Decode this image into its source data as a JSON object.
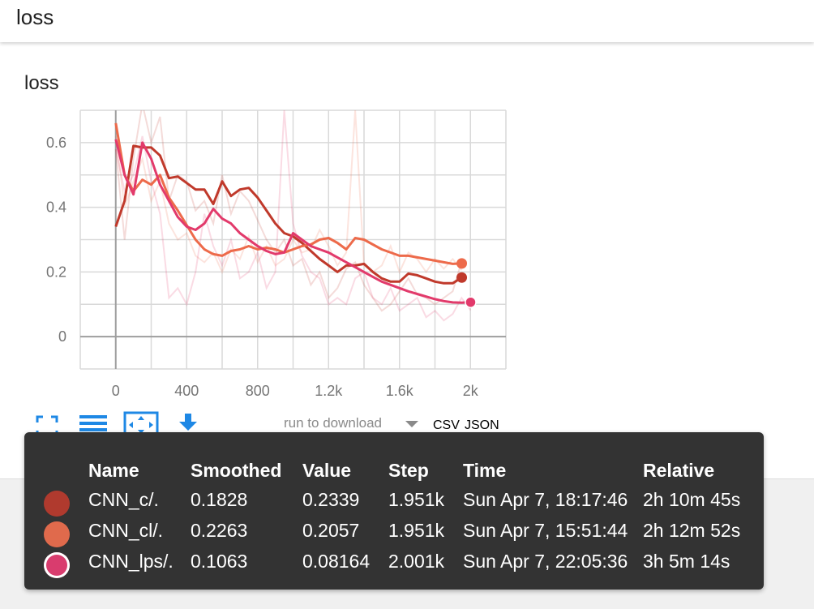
{
  "header": {
    "title": "loss"
  },
  "chart_data": {
    "type": "line",
    "title": "loss",
    "xlabel": "",
    "ylabel": "",
    "xlim": [
      -200,
      2200
    ],
    "ylim": [
      -0.1,
      0.7
    ],
    "x_ticks": [
      0,
      400,
      800,
      1200,
      1600,
      2000
    ],
    "x_tick_labels": [
      "0",
      "400",
      "800",
      "1.2k",
      "1.6k",
      "2k"
    ],
    "y_ticks": [
      0,
      0.2,
      0.4,
      0.6
    ],
    "y_tick_labels": [
      "0",
      "0.2",
      "0.4",
      "0.6"
    ],
    "grid": true,
    "series": [
      {
        "name": "CNN_c/.",
        "color": "#c0392b",
        "smoothed": [
          [
            0,
            0.34
          ],
          [
            50,
            0.42
          ],
          [
            100,
            0.59
          ],
          [
            150,
            0.585
          ],
          [
            200,
            0.585
          ],
          [
            250,
            0.56
          ],
          [
            300,
            0.49
          ],
          [
            350,
            0.495
          ],
          [
            400,
            0.475
          ],
          [
            450,
            0.455
          ],
          [
            500,
            0.455
          ],
          [
            550,
            0.41
          ],
          [
            600,
            0.48
          ],
          [
            650,
            0.435
          ],
          [
            700,
            0.455
          ],
          [
            750,
            0.46
          ],
          [
            800,
            0.43
          ],
          [
            850,
            0.39
          ],
          [
            900,
            0.35
          ],
          [
            950,
            0.32
          ],
          [
            1000,
            0.31
          ],
          [
            1050,
            0.29
          ],
          [
            1100,
            0.265
          ],
          [
            1150,
            0.24
          ],
          [
            1200,
            0.22
          ],
          [
            1250,
            0.2
          ],
          [
            1300,
            0.22
          ],
          [
            1350,
            0.22
          ],
          [
            1400,
            0.225
          ],
          [
            1450,
            0.2
          ],
          [
            1500,
            0.18
          ],
          [
            1550,
            0.17
          ],
          [
            1600,
            0.17
          ],
          [
            1650,
            0.195
          ],
          [
            1700,
            0.19
          ],
          [
            1750,
            0.18
          ],
          [
            1800,
            0.17
          ],
          [
            1850,
            0.165
          ],
          [
            1900,
            0.165
          ],
          [
            1951,
            0.1828
          ]
        ],
        "raw": [
          [
            0,
            0.58
          ],
          [
            50,
            0.3
          ],
          [
            100,
            0.55
          ],
          [
            150,
            0.72
          ],
          [
            200,
            0.6
          ],
          [
            250,
            0.68
          ],
          [
            300,
            0.42
          ],
          [
            350,
            0.5
          ],
          [
            400,
            0.48
          ],
          [
            450,
            0.39
          ],
          [
            500,
            0.42
          ],
          [
            550,
            0.35
          ],
          [
            600,
            0.5
          ],
          [
            650,
            0.38
          ],
          [
            700,
            0.45
          ],
          [
            750,
            0.42
          ],
          [
            800,
            0.36
          ],
          [
            850,
            0.3
          ],
          [
            900,
            0.26
          ],
          [
            950,
            0.3
          ],
          [
            1000,
            0.22
          ],
          [
            1050,
            0.24
          ],
          [
            1100,
            0.16
          ],
          [
            1150,
            0.2
          ],
          [
            1200,
            0.12
          ],
          [
            1250,
            0.15
          ],
          [
            1300,
            0.21
          ],
          [
            1350,
            0.23
          ],
          [
            1400,
            0.16
          ],
          [
            1450,
            0.12
          ],
          [
            1500,
            0.08
          ],
          [
            1550,
            0.1
          ],
          [
            1600,
            0.14
          ],
          [
            1650,
            0.18
          ],
          [
            1700,
            0.13
          ],
          [
            1750,
            0.12
          ],
          [
            1800,
            0.1
          ],
          [
            1850,
            0.12
          ],
          [
            1900,
            0.14
          ],
          [
            1951,
            0.2339
          ]
        ]
      },
      {
        "name": "CNN_cl/.",
        "color": "#ed6a4a",
        "smoothed": [
          [
            0,
            0.66
          ],
          [
            50,
            0.5
          ],
          [
            100,
            0.45
          ],
          [
            150,
            0.485
          ],
          [
            200,
            0.47
          ],
          [
            250,
            0.5
          ],
          [
            300,
            0.43
          ],
          [
            350,
            0.39
          ],
          [
            400,
            0.345
          ],
          [
            450,
            0.3
          ],
          [
            500,
            0.27
          ],
          [
            550,
            0.255
          ],
          [
            600,
            0.25
          ],
          [
            650,
            0.265
          ],
          [
            700,
            0.27
          ],
          [
            750,
            0.28
          ],
          [
            800,
            0.27
          ],
          [
            850,
            0.275
          ],
          [
            900,
            0.27
          ],
          [
            950,
            0.26
          ],
          [
            1000,
            0.27
          ],
          [
            1050,
            0.28
          ],
          [
            1100,
            0.285
          ],
          [
            1150,
            0.3
          ],
          [
            1200,
            0.305
          ],
          [
            1250,
            0.29
          ],
          [
            1300,
            0.27
          ],
          [
            1350,
            0.305
          ],
          [
            1400,
            0.3
          ],
          [
            1450,
            0.285
          ],
          [
            1500,
            0.27
          ],
          [
            1550,
            0.26
          ],
          [
            1600,
            0.25
          ],
          [
            1650,
            0.25
          ],
          [
            1700,
            0.245
          ],
          [
            1750,
            0.24
          ],
          [
            1800,
            0.235
          ],
          [
            1850,
            0.23
          ],
          [
            1900,
            0.225
          ],
          [
            1951,
            0.2263
          ]
        ],
        "raw": [
          [
            0,
            0.62
          ],
          [
            50,
            0.4
          ],
          [
            100,
            0.48
          ],
          [
            150,
            0.55
          ],
          [
            200,
            0.42
          ],
          [
            250,
            0.48
          ],
          [
            300,
            0.35
          ],
          [
            350,
            0.3
          ],
          [
            400,
            0.32
          ],
          [
            450,
            0.25
          ],
          [
            500,
            0.23
          ],
          [
            550,
            0.26
          ],
          [
            600,
            0.2
          ],
          [
            650,
            0.27
          ],
          [
            700,
            0.24
          ],
          [
            750,
            0.31
          ],
          [
            800,
            0.23
          ],
          [
            850,
            0.28
          ],
          [
            900,
            0.22
          ],
          [
            950,
            0.24
          ],
          [
            1000,
            0.3
          ],
          [
            1050,
            0.26
          ],
          [
            1100,
            0.27
          ],
          [
            1150,
            0.33
          ],
          [
            1200,
            0.28
          ],
          [
            1250,
            0.22
          ],
          [
            1300,
            0.26
          ],
          [
            1350,
            0.7
          ],
          [
            1400,
            0.22
          ],
          [
            1450,
            0.2
          ],
          [
            1500,
            0.22
          ],
          [
            1550,
            0.28
          ],
          [
            1600,
            0.2
          ],
          [
            1650,
            0.26
          ],
          [
            1700,
            0.24
          ],
          [
            1750,
            0.2
          ],
          [
            1800,
            0.24
          ],
          [
            1850,
            0.21
          ],
          [
            1900,
            0.24
          ],
          [
            1951,
            0.2057
          ]
        ]
      },
      {
        "name": "CNN_lps/.",
        "color": "#e23a6b",
        "smoothed": [
          [
            0,
            0.61
          ],
          [
            50,
            0.5
          ],
          [
            100,
            0.44
          ],
          [
            150,
            0.6
          ],
          [
            200,
            0.55
          ],
          [
            250,
            0.47
          ],
          [
            300,
            0.42
          ],
          [
            350,
            0.37
          ],
          [
            400,
            0.34
          ],
          [
            450,
            0.33
          ],
          [
            500,
            0.35
          ],
          [
            550,
            0.395
          ],
          [
            600,
            0.365
          ],
          [
            650,
            0.35
          ],
          [
            700,
            0.32
          ],
          [
            750,
            0.3
          ],
          [
            800,
            0.28
          ],
          [
            850,
            0.265
          ],
          [
            900,
            0.255
          ],
          [
            950,
            0.26
          ],
          [
            1000,
            0.32
          ],
          [
            1050,
            0.3
          ],
          [
            1100,
            0.28
          ],
          [
            1150,
            0.27
          ],
          [
            1200,
            0.26
          ],
          [
            1250,
            0.245
          ],
          [
            1300,
            0.23
          ],
          [
            1350,
            0.215
          ],
          [
            1400,
            0.2
          ],
          [
            1450,
            0.185
          ],
          [
            1500,
            0.17
          ],
          [
            1550,
            0.16
          ],
          [
            1600,
            0.15
          ],
          [
            1650,
            0.14
          ],
          [
            1700,
            0.132
          ],
          [
            1750,
            0.124
          ],
          [
            1800,
            0.116
          ],
          [
            1850,
            0.11
          ],
          [
            1900,
            0.106
          ],
          [
            1950,
            0.105
          ],
          [
            2001,
            0.1063
          ]
        ],
        "raw": [
          [
            0,
            0.58
          ],
          [
            50,
            0.45
          ],
          [
            100,
            0.5
          ],
          [
            150,
            0.62
          ],
          [
            200,
            0.48
          ],
          [
            250,
            0.38
          ],
          [
            300,
            0.12
          ],
          [
            350,
            0.15
          ],
          [
            400,
            0.1
          ],
          [
            450,
            0.2
          ],
          [
            500,
            0.38
          ],
          [
            550,
            0.28
          ],
          [
            600,
            0.22
          ],
          [
            650,
            0.3
          ],
          [
            700,
            0.18
          ],
          [
            750,
            0.2
          ],
          [
            800,
            0.26
          ],
          [
            850,
            0.15
          ],
          [
            900,
            0.2
          ],
          [
            950,
            0.7
          ],
          [
            1000,
            0.35
          ],
          [
            1050,
            0.25
          ],
          [
            1100,
            0.2
          ],
          [
            1150,
            0.18
          ],
          [
            1200,
            0.1
          ],
          [
            1250,
            0.12
          ],
          [
            1300,
            0.1
          ],
          [
            1350,
            0.18
          ],
          [
            1400,
            0.2
          ],
          [
            1450,
            0.12
          ],
          [
            1500,
            0.1
          ],
          [
            1550,
            0.15
          ],
          [
            1600,
            0.08
          ],
          [
            1650,
            0.1
          ],
          [
            1700,
            0.12
          ],
          [
            1750,
            0.06
          ],
          [
            1800,
            0.08
          ],
          [
            1850,
            0.05
          ],
          [
            1900,
            0.07
          ],
          [
            1950,
            0.12
          ],
          [
            2001,
            0.08164
          ]
        ]
      }
    ]
  },
  "toolbar": {
    "run_select_label": "run to download",
    "csv_label": "CSV",
    "json_label": "JSON"
  },
  "tooltip": {
    "headers": {
      "name": "Name",
      "smoothed": "Smoothed",
      "value": "Value",
      "step": "Step",
      "time": "Time",
      "relative": "Relative"
    },
    "rows": [
      {
        "color": "#b03a2e",
        "name": "CNN_c/.",
        "smoothed": "0.1828",
        "value": "0.2339",
        "step": "1.951k",
        "time": "Sun Apr 7, 18:17:46",
        "relative": "2h 10m 45s",
        "ring": false
      },
      {
        "color": "#e06a4c",
        "name": "CNN_cl/.",
        "smoothed": "0.2263",
        "value": "0.2057",
        "step": "1.951k",
        "time": "Sun Apr 7, 15:51:44",
        "relative": "2h 12m 52s",
        "ring": false
      },
      {
        "color": "#d93c6e",
        "name": "CNN_lps/.",
        "smoothed": "0.1063",
        "value": "0.08164",
        "step": "2.001k",
        "time": "Sun Apr 7, 22:05:36",
        "relative": "3h 5m 14s",
        "ring": true
      }
    ]
  }
}
